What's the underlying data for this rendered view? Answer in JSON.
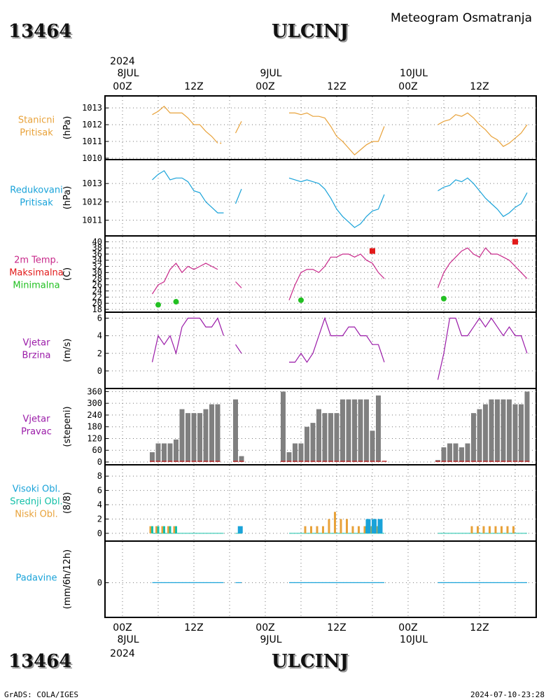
{
  "header": {
    "station_id": "13464",
    "station_name": "ULCINJ",
    "title": "Meteogram Osmatranja"
  },
  "footer": {
    "credit": "GrADS: COLA/IGES",
    "timestamp": "2024-07-10-23:28"
  },
  "time_axis": {
    "top": [
      {
        "line1": "2024",
        "line2": "8JUL",
        "line3": "00Z",
        "h": 0
      },
      {
        "line1": "",
        "line2": "",
        "line3": "12Z",
        "h": 12
      },
      {
        "line1": "",
        "line2": "9JUL",
        "line3": "00Z",
        "h": 24
      },
      {
        "line1": "",
        "line2": "",
        "line3": "12Z",
        "h": 36
      },
      {
        "line1": "",
        "line2": "10JUL",
        "line3": "00Z",
        "h": 48
      },
      {
        "line1": "",
        "line2": "",
        "line3": "12Z",
        "h": 60
      }
    ],
    "bottom": [
      {
        "line1": "00Z",
        "line2": "8JUL",
        "line3": "2024",
        "h": 0
      },
      {
        "line1": "12Z",
        "line2": "",
        "line3": "",
        "h": 12
      },
      {
        "line1": "00Z",
        "line2": "9JUL",
        "line3": "",
        "h": 24
      },
      {
        "line1": "12Z",
        "line2": "",
        "line3": "",
        "h": 36
      },
      {
        "line1": "00Z",
        "line2": "10JUL",
        "line3": "",
        "h": 48
      },
      {
        "line1": "12Z",
        "line2": "",
        "line3": "",
        "h": 60
      }
    ]
  },
  "panel_labels": [
    {
      "lines": [
        "Stanicni",
        "Pritisak"
      ],
      "colors": [
        "#e8a23a",
        "#e8a23a"
      ],
      "unit": "(hPa)"
    },
    {
      "lines": [
        "Redukovani",
        "Pritisak"
      ],
      "colors": [
        "#1aa3d9",
        "#1aa3d9"
      ],
      "unit": "(hPa)"
    },
    {
      "lines": [
        "2m Temp.",
        "Maksimalna",
        "Minimalna"
      ],
      "colors": [
        "#c8288a",
        "#e21a1a",
        "#22c022"
      ],
      "unit": "(C)"
    },
    {
      "lines": [
        "Vjetar",
        "Brzina"
      ],
      "colors": [
        "#9a1aa8",
        "#9a1aa8"
      ],
      "unit": "(m/s)"
    },
    {
      "lines": [
        "Vjetar",
        "Pravac"
      ],
      "colors": [
        "#9a1aa8",
        "#9a1aa8"
      ],
      "unit": "(stepeni)"
    },
    {
      "lines": [
        "Visoki Obl.",
        "Srednji Obl.",
        "Niski Obl."
      ],
      "colors": [
        "#1aa3d9",
        "#16c0a8",
        "#e8a23a"
      ],
      "unit": "(8/8)"
    },
    {
      "lines": [
        "Padavine"
      ],
      "colors": [
        "#1aa3d9"
      ],
      "unit": "(mm/6h/12h)"
    }
  ],
  "chart_data": [
    {
      "type": "line",
      "title": "Stanicni Pritisak",
      "ylabel": "(hPa)",
      "ylim": [
        1010,
        1013.3
      ],
      "yticks": [
        1010,
        1011,
        1012,
        1013
      ],
      "color": "#e8a23a",
      "series": [
        {
          "x": [
            5,
            6,
            7,
            8,
            9,
            10,
            11,
            12,
            13,
            14,
            15,
            16
          ],
          "y": [
            1012.6,
            1012.8,
            1013.1,
            1012.7,
            1012.7,
            1012.7,
            1012.4,
            1012.0,
            1012.0,
            1011.6,
            1011.3,
            1010.9
          ]
        },
        {
          "x": [
            16.5
          ],
          "y": [
            1010.9
          ]
        },
        {
          "x": [
            19,
            20
          ],
          "y": [
            1011.5,
            1012.2
          ]
        },
        {
          "x": [
            28,
            29,
            30,
            31,
            32,
            33,
            34,
            35,
            36,
            37,
            38,
            39,
            40,
            41,
            42,
            43,
            44
          ],
          "y": [
            1012.7,
            1012.7,
            1012.6,
            1012.7,
            1012.5,
            1012.5,
            1012.4,
            1011.9,
            1011.3,
            1011.0,
            1010.6,
            1010.2,
            1010.5,
            1010.8,
            1011.0,
            1011.0,
            1011.9
          ]
        },
        {
          "x": [
            53,
            54,
            55,
            56,
            57,
            58,
            59,
            60,
            61,
            62,
            63,
            64,
            65,
            66,
            67,
            68
          ],
          "y": [
            1012.0,
            1012.2,
            1012.3,
            1012.6,
            1012.5,
            1012.7,
            1012.4,
            1012.0,
            1011.7,
            1011.3,
            1011.1,
            1010.7,
            1010.9,
            1011.2,
            1011.5,
            1012.0
          ]
        }
      ]
    },
    {
      "type": "line",
      "title": "Redukovani Pritisak",
      "ylabel": "(hPa)",
      "ylim": [
        1010.6,
        1014.0
      ],
      "yticks": [
        1011,
        1012,
        1013
      ],
      "color": "#1aa3d9",
      "series": [
        {
          "x": [
            5,
            6,
            7,
            8,
            9,
            10,
            11,
            12,
            13,
            14,
            15,
            16,
            17
          ],
          "y": [
            1013.2,
            1013.5,
            1013.7,
            1013.2,
            1013.3,
            1013.3,
            1013.1,
            1012.6,
            1012.5,
            1012.0,
            1011.7,
            1011.4,
            1011.4
          ]
        },
        {
          "x": [
            19,
            20
          ],
          "y": [
            1011.9,
            1012.7
          ]
        },
        {
          "x": [
            28,
            29,
            30,
            31,
            32,
            33,
            34,
            35,
            36,
            37,
            38,
            39,
            40,
            41,
            42,
            43,
            44
          ],
          "y": [
            1013.3,
            1013.2,
            1013.1,
            1013.2,
            1013.1,
            1013.0,
            1012.7,
            1012.2,
            1011.6,
            1011.2,
            1010.9,
            1010.6,
            1010.8,
            1011.2,
            1011.5,
            1011.6,
            1012.4
          ]
        },
        {
          "x": [
            53,
            54,
            55,
            56,
            57,
            58,
            59,
            60,
            61,
            62,
            63,
            64,
            65,
            66,
            67,
            68
          ],
          "y": [
            1012.6,
            1012.8,
            1012.9,
            1013.2,
            1013.1,
            1013.3,
            1013.0,
            1012.6,
            1012.2,
            1011.9,
            1011.6,
            1011.2,
            1011.4,
            1011.7,
            1011.9,
            1012.5
          ]
        }
      ]
    },
    {
      "type": "line",
      "title": "2m Temp.",
      "ylabel": "(C)",
      "ylim": [
        18,
        41
      ],
      "yticks": [
        18,
        20,
        22,
        24,
        26,
        28,
        30,
        32,
        34,
        36,
        38,
        40
      ],
      "color": "#c8288a",
      "series": [
        {
          "x": [
            5,
            6,
            7,
            8,
            9,
            10,
            11,
            12,
            13,
            14,
            15,
            16
          ],
          "y": [
            23,
            26,
            27,
            31,
            33,
            30,
            32,
            31,
            32,
            33,
            32,
            31
          ]
        },
        {
          "x": [
            19,
            20
          ],
          "y": [
            27,
            25
          ]
        },
        {
          "x": [
            28,
            29,
            30,
            31,
            32,
            33,
            34,
            35,
            36,
            37,
            38,
            39,
            40,
            41,
            42,
            43,
            44
          ],
          "y": [
            21,
            26,
            30,
            31,
            31,
            30,
            32,
            35,
            35,
            36,
            36,
            35,
            36,
            34,
            33,
            30,
            28
          ]
        },
        {
          "x": [
            53,
            54,
            55,
            56,
            57,
            58,
            59,
            60,
            61,
            62,
            63,
            64,
            65,
            66,
            67,
            68
          ],
          "y": [
            25,
            30,
            33,
            35,
            37,
            38,
            36,
            35,
            38,
            36,
            36,
            35,
            34,
            32,
            30,
            28
          ]
        }
      ],
      "max_points": [
        {
          "x": 42,
          "y": 37
        },
        {
          "x": 66,
          "y": 40
        }
      ],
      "min_points": [
        {
          "x": 6,
          "y": 19.5
        },
        {
          "x": 9,
          "y": 20.5
        },
        {
          "x": 30,
          "y": 21
        },
        {
          "x": 54,
          "y": 21.5
        }
      ],
      "max_color": "#e21a1a",
      "min_color": "#22c022"
    },
    {
      "type": "line",
      "title": "Vjetar Brzina",
      "ylabel": "(m/s)",
      "ylim": [
        -1.2,
        6.2
      ],
      "yticks": [
        0,
        2,
        4,
        6
      ],
      "color": "#9a1aa8",
      "series": [
        {
          "x": [
            5,
            6,
            7,
            8,
            9,
            10,
            11,
            12,
            13,
            14,
            15,
            16,
            17
          ],
          "y": [
            1,
            4,
            3,
            4,
            2,
            5,
            6,
            6,
            6,
            5,
            5,
            6,
            4
          ]
        },
        {
          "x": [
            19,
            20
          ],
          "y": [
            3,
            2
          ]
        },
        {
          "x": [
            28,
            29,
            30,
            31,
            32,
            33,
            34,
            35,
            36,
            37,
            38,
            39,
            40,
            41,
            42,
            43,
            44
          ],
          "y": [
            1,
            1,
            2,
            1,
            2,
            4,
            6,
            4,
            4,
            4,
            5,
            5,
            4,
            4,
            3,
            3,
            1
          ]
        },
        {
          "x": [
            53,
            54,
            55,
            56,
            57,
            58,
            59,
            60,
            61,
            62,
            63,
            64,
            65,
            66,
            67,
            68
          ],
          "y": [
            -1,
            2,
            6,
            6,
            4,
            4,
            5,
            6,
            5,
            6,
            5,
            4,
            5,
            4,
            4,
            2
          ]
        }
      ]
    },
    {
      "type": "bar",
      "title": "Vjetar Pravac",
      "ylabel": "(stepeni)",
      "ylim": [
        0,
        365
      ],
      "yticks": [
        0,
        60,
        120,
        180,
        240,
        300,
        360
      ],
      "color": "#808080",
      "baseline_color": "#c03030",
      "x": [
        5,
        6,
        7,
        8,
        9,
        10,
        11,
        12,
        13,
        14,
        15,
        16,
        19,
        20,
        27,
        28,
        29,
        30,
        31,
        32,
        33,
        34,
        35,
        36,
        37,
        38,
        39,
        40,
        41,
        42,
        43,
        44,
        53,
        54,
        55,
        56,
        57,
        58,
        59,
        60,
        61,
        62,
        63,
        64,
        65,
        66,
        67,
        68
      ],
      "values": [
        50,
        95,
        95,
        95,
        115,
        270,
        250,
        250,
        250,
        270,
        295,
        295,
        320,
        30,
        360,
        50,
        95,
        95,
        180,
        200,
        270,
        250,
        250,
        250,
        320,
        320,
        320,
        320,
        320,
        160,
        340,
        0,
        10,
        75,
        95,
        95,
        75,
        95,
        250,
        270,
        295,
        320,
        320,
        320,
        320,
        295,
        295,
        360
      ]
    },
    {
      "type": "bar",
      "title": "Visoki Obl. / Srednji Obl. / Niski Obl.",
      "ylabel": "(8/8)",
      "ylim": [
        -0.5,
        8.8
      ],
      "yticks": [
        0,
        2,
        4,
        6,
        8
      ],
      "series": [
        {
          "name": "Niski Obl.",
          "color": "#e8a23a",
          "x": [
            5,
            6,
            7,
            8,
            9,
            31,
            32,
            33,
            34,
            35,
            36,
            37,
            38,
            39,
            40,
            41,
            42,
            43,
            59,
            60,
            61,
            62,
            63,
            64,
            65,
            66
          ],
          "values": [
            1,
            1,
            1,
            1,
            1,
            1,
            1,
            1,
            1,
            2,
            3,
            2,
            2,
            1,
            1,
            1,
            1,
            1,
            1,
            1,
            1,
            1,
            1,
            1,
            1,
            1
          ]
        },
        {
          "name": "Srednji Obl.",
          "color": "#16c0a8",
          "x": [
            5,
            6,
            7,
            8,
            9,
            41,
            42,
            43
          ],
          "values": [
            1,
            1,
            1,
            1,
            1,
            1,
            1,
            1
          ]
        },
        {
          "name": "Visoki Obl.",
          "color": "#1aa3d9",
          "x": [
            19.5,
            41,
            42,
            43
          ],
          "values": [
            1,
            2,
            2,
            2
          ]
        }
      ]
    },
    {
      "type": "line",
      "title": "Padavine",
      "ylabel": "(mm/6h/12h)",
      "ylim": [
        -3,
        4
      ],
      "yticks": [
        0
      ],
      "color": "#1aa3d9",
      "series": [
        {
          "x": [
            5,
            17
          ],
          "y": [
            0,
            0
          ]
        },
        {
          "x": [
            19,
            20
          ],
          "y": [
            0,
            0
          ]
        },
        {
          "x": [
            28,
            44
          ],
          "y": [
            0,
            0
          ]
        },
        {
          "x": [
            53,
            68
          ],
          "y": [
            0,
            0
          ]
        }
      ]
    }
  ]
}
